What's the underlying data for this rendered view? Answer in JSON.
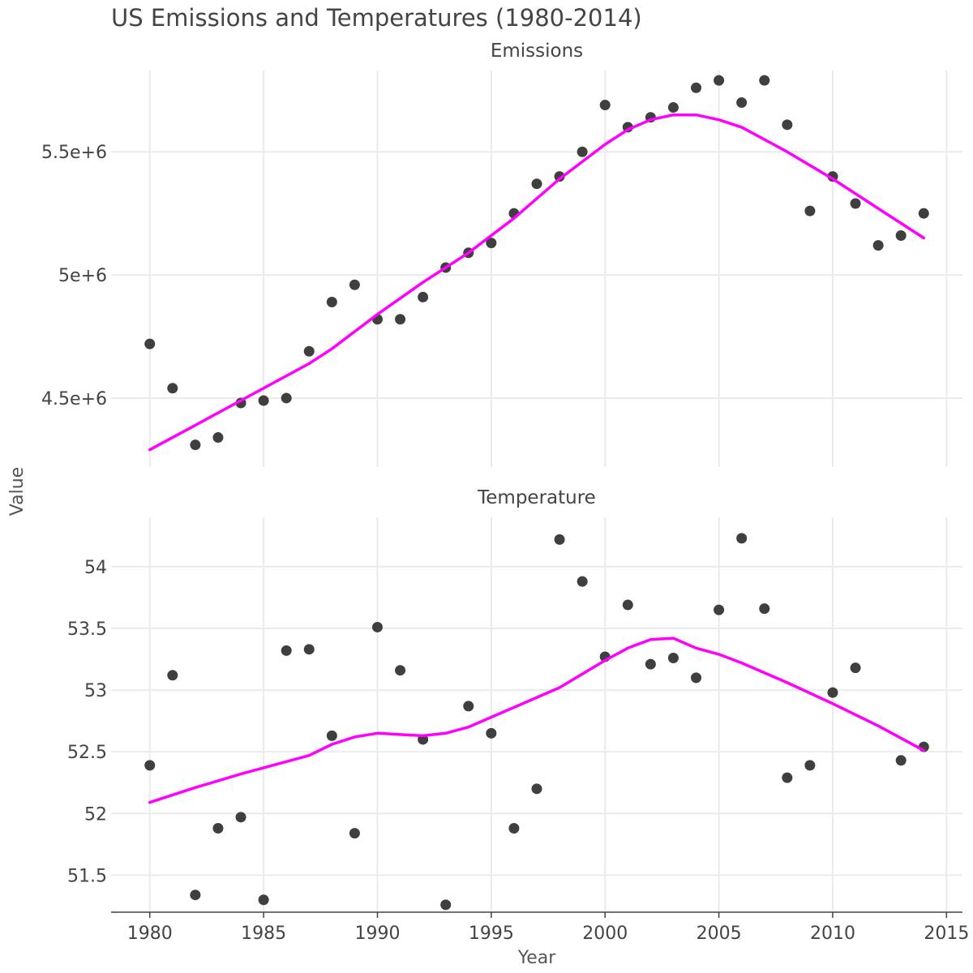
{
  "chart_data": {
    "type": "scatter",
    "title": "US Emissions and Temperatures (1980-2014)",
    "xlabel": "Year",
    "ylabel": "Value",
    "xlim": [
      1978.3,
      2015.7
    ],
    "x_ticks": [
      1980,
      1985,
      1990,
      1995,
      2000,
      2005,
      2010,
      2015
    ],
    "x_tick_labels": [
      "1980",
      "1985",
      "1990",
      "1995",
      "2000",
      "2005",
      "2010",
      "2015"
    ],
    "grid": true,
    "point_color": "#3f3f3f",
    "smooth_color": "#ff00ff",
    "panels": [
      {
        "name": "Emissions",
        "ylim": [
          4220000,
          5830000
        ],
        "y_ticks": [
          4500000,
          5000000,
          5500000
        ],
        "y_tick_labels": [
          "4.5e+6",
          "5e+6",
          "5.5e+6"
        ],
        "x": [
          1980,
          1981,
          1982,
          1983,
          1984,
          1985,
          1986,
          1987,
          1988,
          1989,
          1990,
          1991,
          1992,
          1993,
          1994,
          1995,
          1996,
          1997,
          1998,
          1999,
          2000,
          2001,
          2002,
          2003,
          2004,
          2005,
          2006,
          2007,
          2008,
          2009,
          2010,
          2011,
          2012,
          2013,
          2014
        ],
        "y": [
          4720000,
          4540000,
          4310000,
          4340000,
          4480000,
          4490000,
          4500000,
          4690000,
          4890000,
          4960000,
          4820000,
          4820000,
          4910000,
          5030000,
          5090000,
          5130000,
          5250000,
          5370000,
          5400000,
          5500000,
          5690000,
          5600000,
          5640000,
          5680000,
          5760000,
          5790000,
          5700000,
          5790000,
          5610000,
          5260000,
          5400000,
          5290000,
          5120000,
          5160000,
          5250000
        ],
        "smooth_x": [
          1980,
          1982,
          1984,
          1986,
          1987,
          1988,
          1990,
          1992,
          1994,
          1996,
          1998,
          2000,
          2001,
          2002,
          2003,
          2004,
          2005,
          2006,
          2007,
          2008,
          2010,
          2012,
          2014
        ],
        "smooth_y": [
          4290000,
          4390000,
          4490000,
          4590000,
          4640000,
          4700000,
          4840000,
          4970000,
          5090000,
          5230000,
          5390000,
          5530000,
          5590000,
          5630000,
          5650000,
          5650000,
          5630000,
          5600000,
          5550000,
          5500000,
          5390000,
          5270000,
          5150000
        ]
      },
      {
        "name": "Temperature",
        "ylim": [
          51.2,
          54.4
        ],
        "y_ticks": [
          51.5,
          52,
          52.5,
          53,
          53.5,
          54
        ],
        "y_tick_labels": [
          "51.5",
          "52",
          "52.5",
          "53",
          "53.5",
          "54"
        ],
        "x": [
          1980,
          1981,
          1982,
          1983,
          1984,
          1985,
          1986,
          1987,
          1988,
          1989,
          1990,
          1991,
          1992,
          1993,
          1994,
          1995,
          1996,
          1997,
          1998,
          1999,
          2000,
          2001,
          2002,
          2003,
          2004,
          2005,
          2006,
          2007,
          2008,
          2009,
          2010,
          2011,
          2013,
          2014
        ],
        "y": [
          52.39,
          53.12,
          51.34,
          51.88,
          51.97,
          51.3,
          53.32,
          53.33,
          52.63,
          51.84,
          53.51,
          53.16,
          52.6,
          51.26,
          52.87,
          52.65,
          51.88,
          52.2,
          54.22,
          53.88,
          53.27,
          53.69,
          53.21,
          53.26,
          53.1,
          53.65,
          54.23,
          53.66,
          52.29,
          52.39,
          52.98,
          53.18,
          52.43,
          52.54
        ],
        "smooth_x": [
          1980,
          1982,
          1984,
          1986,
          1987,
          1988,
          1989,
          1990,
          1991,
          1992,
          1993,
          1994,
          1995,
          1996,
          1998,
          2000,
          2001,
          2002,
          2003,
          2004,
          2005,
          2006,
          2008,
          2010,
          2012,
          2014
        ],
        "smooth_y": [
          52.09,
          52.21,
          52.32,
          52.42,
          52.47,
          52.56,
          52.62,
          52.65,
          52.64,
          52.63,
          52.65,
          52.7,
          52.78,
          52.86,
          53.02,
          53.24,
          53.34,
          53.41,
          53.42,
          53.34,
          53.29,
          53.22,
          53.06,
          52.89,
          52.71,
          52.51
        ]
      }
    ]
  }
}
